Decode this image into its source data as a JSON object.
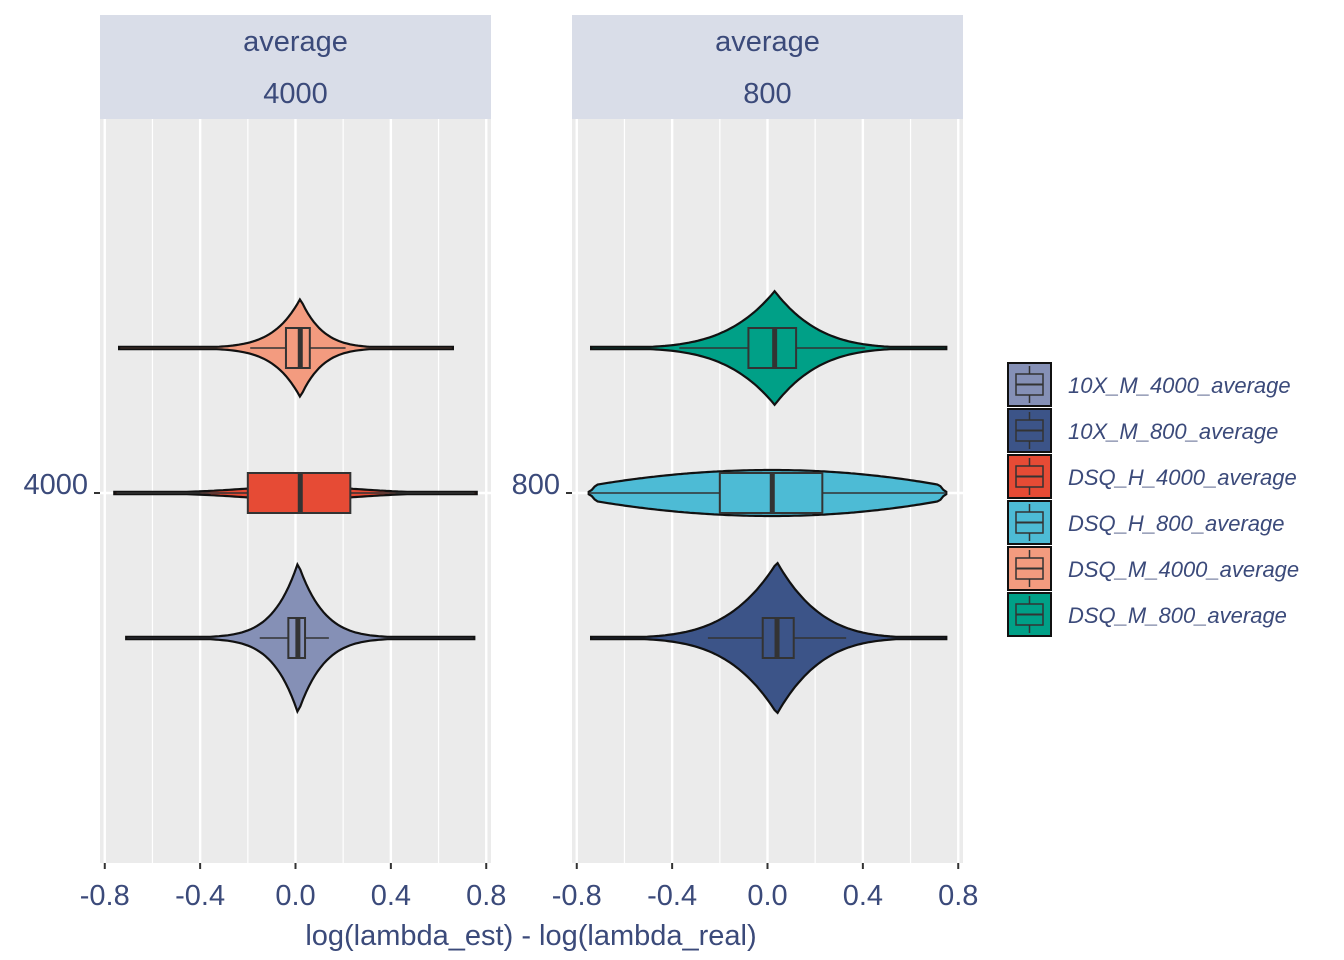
{
  "chart_data": {
    "type": "violin",
    "xlabel": "log(lambda_est) - log(lambda_real)",
    "xlim": [
      -0.82,
      0.82
    ],
    "xticks": [
      -0.8,
      -0.4,
      0.0,
      0.4,
      0.8
    ],
    "xtick_labels": [
      "-0.8",
      "-0.4",
      "0.0",
      "0.4",
      "0.8"
    ],
    "grid": true,
    "legend_position": "right",
    "legend": [
      {
        "label": "10X_M_4000_average",
        "color": "#8590b6"
      },
      {
        "label": "10X_M_800_average",
        "color": "#3c5488"
      },
      {
        "label": "DSQ_H_4000_average",
        "color": "#e64b35"
      },
      {
        "label": "DSQ_H_800_average",
        "color": "#4dbbd5"
      },
      {
        "label": "DSQ_M_4000_average",
        "color": "#f39b7f"
      },
      {
        "label": "DSQ_M_800_average",
        "color": "#00a087"
      }
    ],
    "panels": [
      {
        "strip": [
          "average",
          "4000"
        ],
        "ytick_label": "4000",
        "series": [
          {
            "name": "DSQ_M_4000_average",
            "color": "#f39b7f",
            "min": -0.74,
            "max": 0.66,
            "q1": -0.04,
            "median": 0.02,
            "q3": 0.06,
            "whisker_low": -0.19,
            "whisker_high": 0.21,
            "shape": "peaked",
            "height": 0.42
          },
          {
            "name": "DSQ_H_4000_average",
            "color": "#e64b35",
            "min": -0.76,
            "max": 0.76,
            "q1": -0.2,
            "median": 0.02,
            "q3": 0.23,
            "whisker_low": -0.75,
            "whisker_high": 0.75,
            "shape": "flat",
            "height": 0.08
          },
          {
            "name": "10X_M_4000_average",
            "color": "#8590b6",
            "min": -0.71,
            "max": 0.75,
            "q1": -0.03,
            "median": 0.01,
            "q3": 0.04,
            "whisker_low": -0.15,
            "whisker_high": 0.14,
            "shape": "peaked",
            "height": 0.64
          }
        ]
      },
      {
        "strip": [
          "average",
          "800"
        ],
        "ytick_label": "800",
        "series": [
          {
            "name": "DSQ_M_800_average",
            "color": "#00a087",
            "min": -0.74,
            "max": 0.75,
            "q1": -0.08,
            "median": 0.03,
            "q3": 0.12,
            "whisker_low": -0.37,
            "whisker_high": 0.41,
            "shape": "mid",
            "height": 0.48
          },
          {
            "name": "DSQ_H_800_average",
            "color": "#4dbbd5",
            "min": -0.75,
            "max": 0.75,
            "q1": -0.2,
            "median": 0.02,
            "q3": 0.23,
            "whisker_low": -0.75,
            "whisker_high": 0.75,
            "shape": "broad",
            "height": 0.2
          },
          {
            "name": "10X_M_800_average",
            "color": "#3c5488",
            "min": -0.74,
            "max": 0.75,
            "q1": -0.02,
            "median": 0.04,
            "q3": 0.11,
            "whisker_low": -0.25,
            "whisker_high": 0.33,
            "shape": "mid",
            "height": 0.64
          }
        ]
      }
    ]
  }
}
